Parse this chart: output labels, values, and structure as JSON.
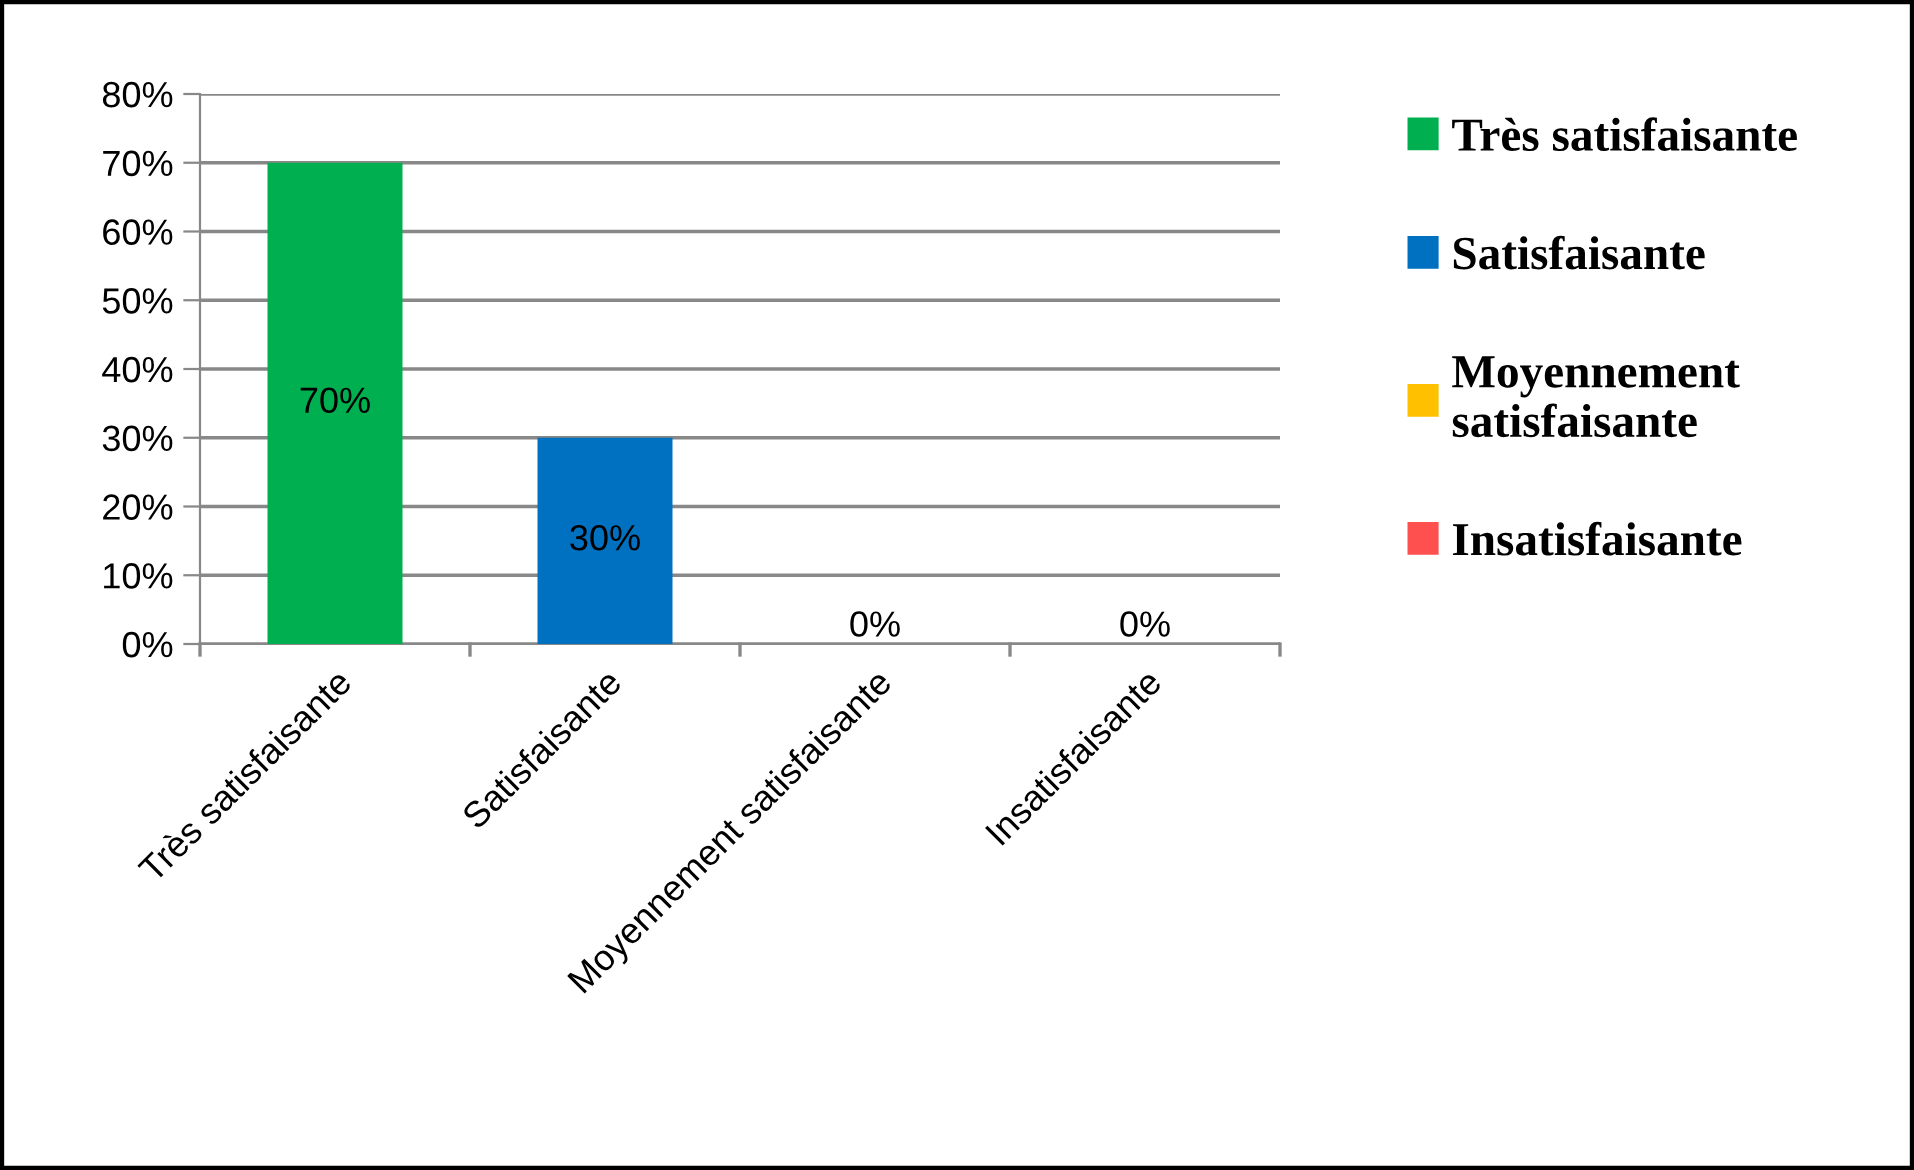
{
  "chart_data": {
    "type": "bar",
    "categories": [
      "Très satisfaisante",
      "Satisfaisante",
      "Moyennement satisfaisante",
      "Insatisfaisante"
    ],
    "series": [
      {
        "name": "Très satisfaisante",
        "color": "#00b050",
        "values": [
          70,
          null,
          null,
          null
        ],
        "value_labels": [
          "70%",
          null,
          null,
          null
        ]
      },
      {
        "name": "Satisfaisante",
        "color": "#0070c0",
        "values": [
          null,
          30,
          null,
          null
        ],
        "value_labels": [
          null,
          "30%",
          null,
          null
        ]
      },
      {
        "name": "Moyennement satisfaisante",
        "color": "#ffc000",
        "values": [
          null,
          null,
          0,
          null
        ],
        "value_labels": [
          null,
          null,
          "0%",
          null
        ]
      },
      {
        "name": "Insatisfaisante",
        "color": "#ff5050",
        "values": [
          null,
          null,
          null,
          0
        ],
        "value_labels": [
          null,
          null,
          null,
          "0%"
        ]
      }
    ],
    "ylim": [
      0,
      80
    ],
    "yticks": [
      {
        "value": 0,
        "label": "0%"
      },
      {
        "value": 10,
        "label": "10%"
      },
      {
        "value": 20,
        "label": "20%"
      },
      {
        "value": 30,
        "label": "30%"
      },
      {
        "value": 40,
        "label": "40%"
      },
      {
        "value": 50,
        "label": "50%"
      },
      {
        "value": 60,
        "label": "60%"
      },
      {
        "value": 70,
        "label": "70%"
      },
      {
        "value": 80,
        "label": "80%"
      }
    ],
    "grid": "y",
    "legend": "right"
  }
}
